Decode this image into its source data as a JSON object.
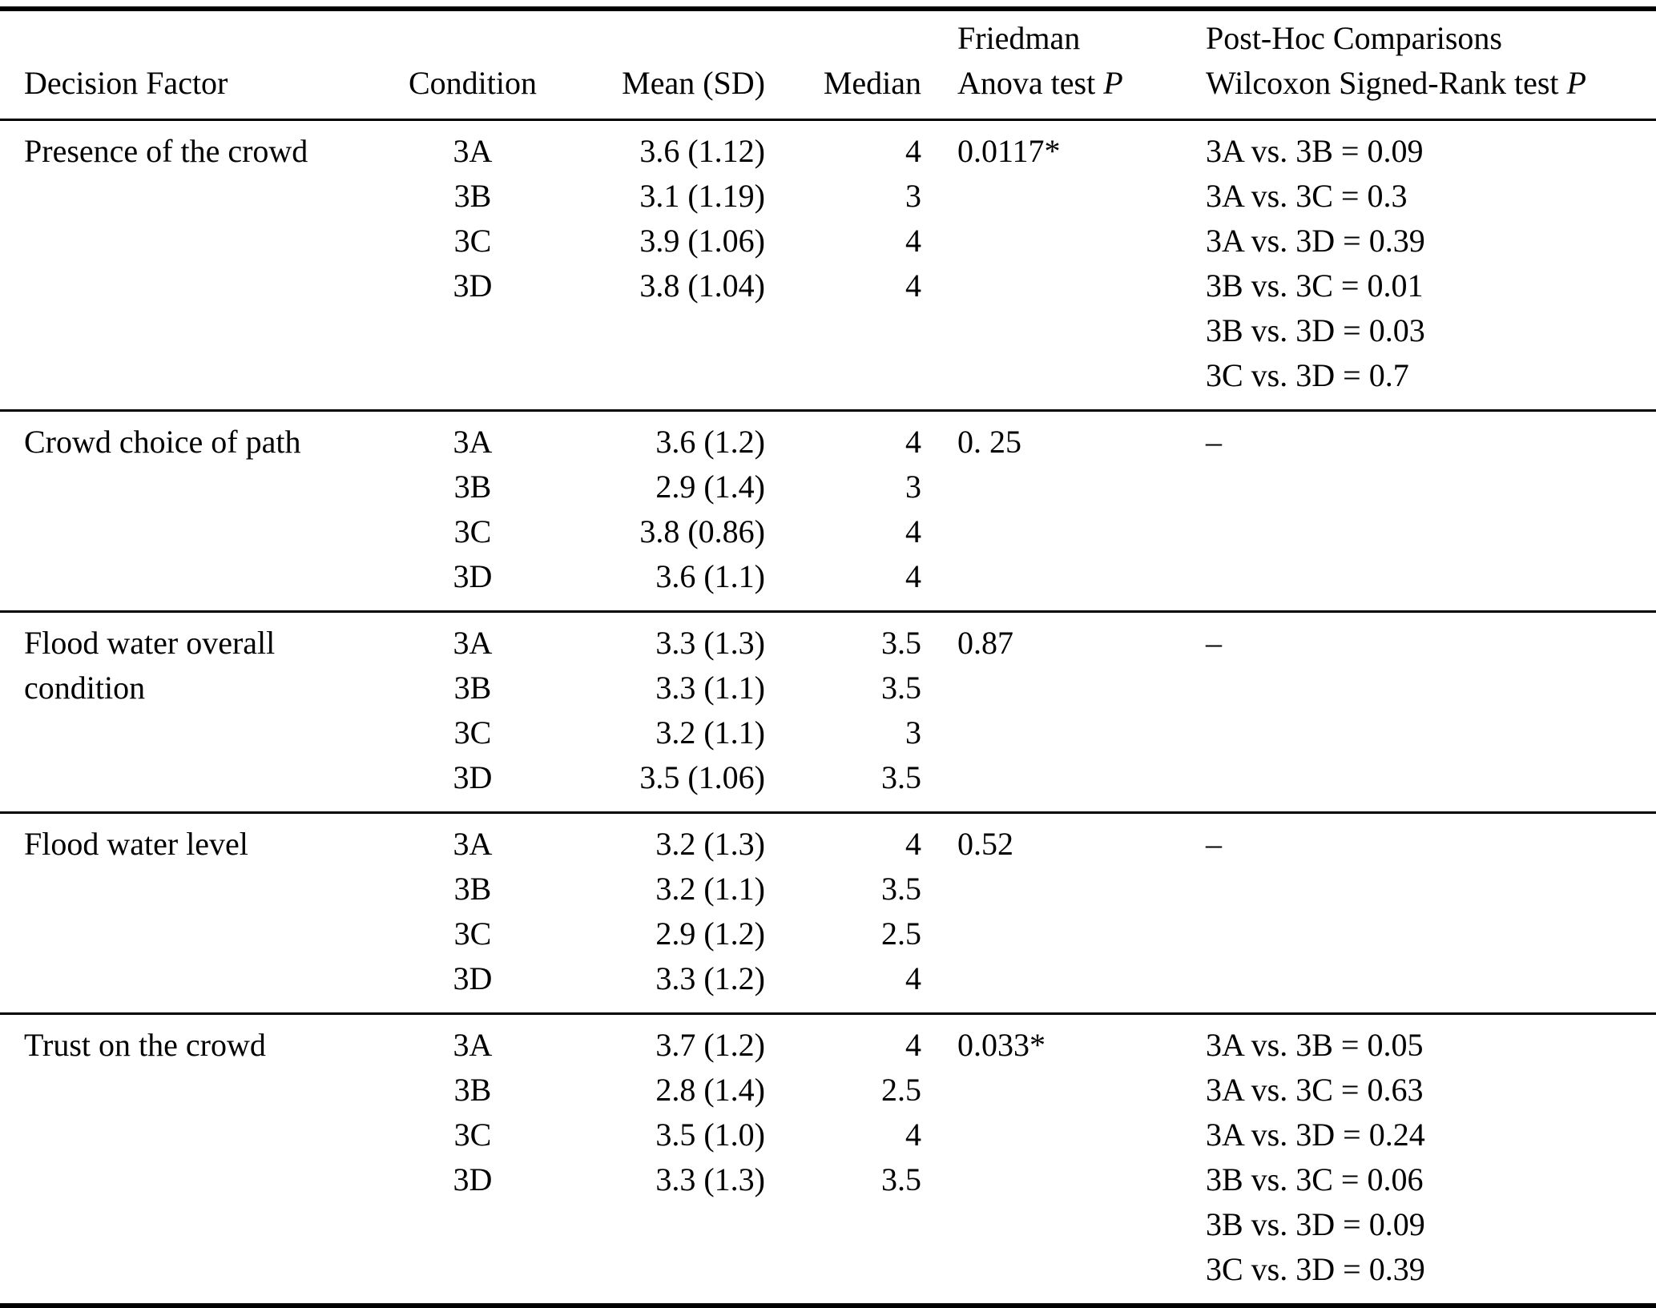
{
  "page": {
    "background": "#ffffff",
    "text_color": "#000000",
    "rule_color": "#000000"
  },
  "table": {
    "headers": {
      "decision_factor": "Decision Factor",
      "condition": "Condition",
      "mean_sd": "Mean (SD)",
      "median": "Median",
      "friedman": {
        "line1": "Friedman",
        "line2": "Anova test ",
        "p": "P"
      },
      "posthoc": {
        "line1": "Post-Hoc Comparisons",
        "line2": "Wilcoxon Signed-Rank test ",
        "p": "P"
      }
    },
    "rows": [
      {
        "factor": "Presence of the crowd",
        "conditions": [
          "3A",
          "3B",
          "3C",
          "3D"
        ],
        "mean_sd": [
          "3.6 (1.12)",
          "3.1 (1.19)",
          "3.9 (1.06)",
          "3.8 (1.04)"
        ],
        "median": [
          "4",
          "3",
          "4",
          "4"
        ],
        "friedman_p": "0.0117*",
        "posthoc": [
          "3A vs. 3B = 0.09",
          "3A vs. 3C = 0.3",
          "3A vs. 3D = 0.39",
          "3B vs. 3C = 0.01",
          "3B vs. 3D = 0.03",
          "3C vs. 3D = 0.7"
        ]
      },
      {
        "factor": "Crowd choice of path",
        "conditions": [
          "3A",
          "3B",
          "3C",
          "3D"
        ],
        "mean_sd": [
          "3.6 (1.2)",
          "2.9 (1.4)",
          "3.8 (0.86)",
          "3.6 (1.1)"
        ],
        "median": [
          "4",
          "3",
          "4",
          "4"
        ],
        "friedman_p": "0. 25",
        "posthoc": [
          "–"
        ]
      },
      {
        "factor": "Flood water overall condition",
        "conditions": [
          "3A",
          "3B",
          "3C",
          "3D"
        ],
        "mean_sd": [
          "3.3 (1.3)",
          "3.3 (1.1)",
          "3.2 (1.1)",
          "3.5 (1.06)"
        ],
        "median": [
          "3.5",
          "3.5",
          "3",
          "3.5"
        ],
        "friedman_p": "0.87",
        "posthoc": [
          "–"
        ]
      },
      {
        "factor": "Flood water level",
        "conditions": [
          "3A",
          "3B",
          "3C",
          "3D"
        ],
        "mean_sd": [
          "3.2 (1.3)",
          "3.2 (1.1)",
          "2.9 (1.2)",
          "3.3 (1.2)"
        ],
        "median": [
          "4",
          "3.5",
          "2.5",
          "4"
        ],
        "friedman_p": "0.52",
        "posthoc": [
          "–"
        ]
      },
      {
        "factor": "Trust on the crowd",
        "conditions": [
          "3A",
          "3B",
          "3C",
          "3D"
        ],
        "mean_sd": [
          "3.7 (1.2)",
          "2.8 (1.4)",
          "3.5 (1.0)",
          "3.3 (1.3)"
        ],
        "median": [
          "4",
          "2.5",
          "4",
          "3.5"
        ],
        "friedman_p": "0.033*",
        "posthoc": [
          "3A vs. 3B = 0.05",
          "3A vs. 3C = 0.63",
          "3A vs. 3D = 0.24",
          "3B vs. 3C = 0.06",
          "3B vs. 3D = 0.09",
          "3C vs. 3D = 0.39"
        ]
      }
    ]
  }
}
